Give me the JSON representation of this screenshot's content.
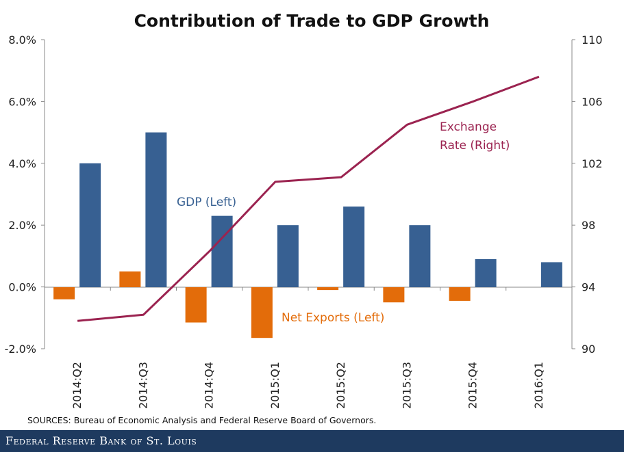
{
  "chart_data": {
    "type": "bar",
    "title": "Contribution of Trade to GDP Growth",
    "categories": [
      "2014:Q2",
      "2014:Q3",
      "2014:Q4",
      "2015:Q1",
      "2015:Q2",
      "2015:Q3",
      "2015:Q4",
      "2016:Q1"
    ],
    "series": [
      {
        "name": "Net Exports (Left)",
        "type": "bar",
        "axis": "left",
        "color": "#e36c0a",
        "values": [
          -0.4,
          0.5,
          -1.15,
          -1.65,
          -0.1,
          -0.5,
          -0.45,
          null
        ]
      },
      {
        "name": "GDP (Left)",
        "type": "bar",
        "axis": "left",
        "color": "#376092",
        "values": [
          4.0,
          5.0,
          2.3,
          2.0,
          2.6,
          2.0,
          0.9,
          0.8
        ]
      },
      {
        "name": "Exchange Rate (Right)",
        "type": "line",
        "axis": "right",
        "color": "#9b2350",
        "values": [
          91.8,
          92.2,
          96.3,
          100.8,
          101.1,
          104.5,
          106.0,
          107.6
        ]
      }
    ],
    "y_left": {
      "min": -2.0,
      "max": 8.0,
      "ticks": [
        "8.0%",
        "6.0%",
        "4.0%",
        "2.0%",
        "0.0%",
        "-2.0%"
      ]
    },
    "y_right": {
      "min": 90,
      "max": 110,
      "ticks": [
        "110",
        "106",
        "102",
        "98",
        "94",
        "90"
      ]
    },
    "annotations": {
      "gdp": "GDP (Left)",
      "net_exports": "Net Exports (Left)",
      "exchange_line1": "Exchange",
      "exchange_line2": "Rate (Right)"
    },
    "source": "SOURCES: Bureau of Economic Analysis and Federal Reserve Board of Governors.",
    "grid": false
  },
  "footer": {
    "label": "Federal Reserve Bank of St. Louis"
  }
}
